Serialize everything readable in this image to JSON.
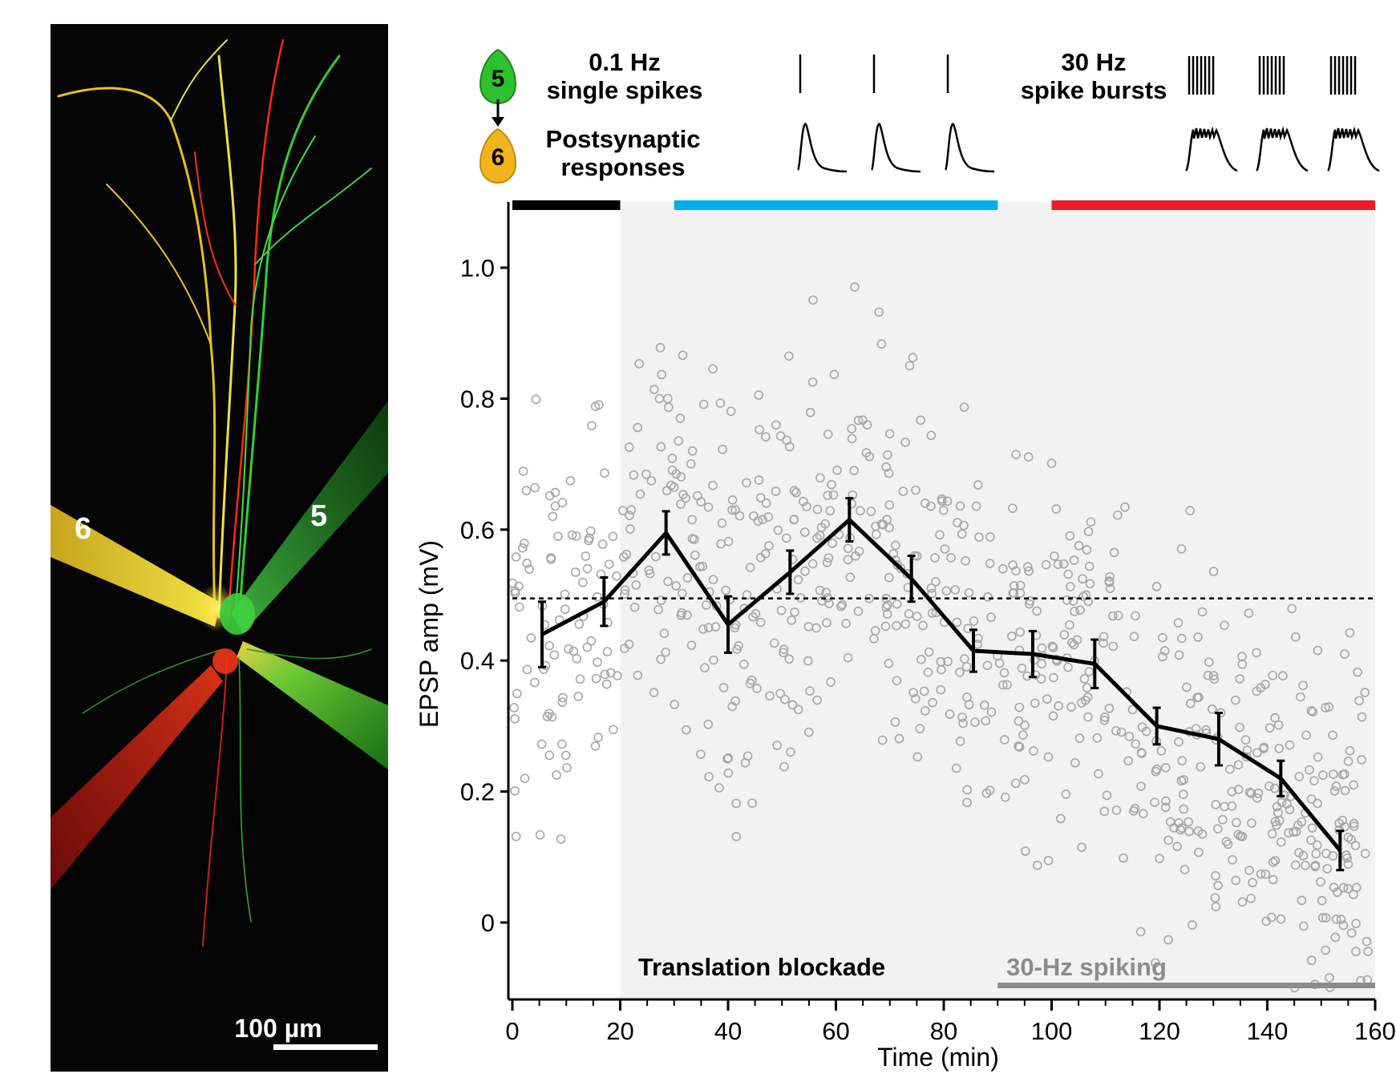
{
  "micrograph": {
    "electrode_label_left": "6",
    "electrode_label_right": "5",
    "scale_bar_label": "100 µm"
  },
  "legend": {
    "pre_cell_label": "5",
    "post_cell_label": "6",
    "single_spikes_line1": "0.1 Hz",
    "single_spikes_line2": "single spikes",
    "responses_line1": "Postsynaptic",
    "responses_line2": "responses",
    "bursts_line1": "30 Hz",
    "bursts_line2": "spike bursts"
  },
  "colors": {
    "baseline_bar": "#000000",
    "single_spike_bar": "#00aeef",
    "burst_bar": "#ee1c25",
    "shade": "#f2f2f2",
    "scatter": "#a6a6a6",
    "pre_cell": "#3ad13a",
    "post_cell": "#f2b41e"
  },
  "annotations": {
    "translation_blockade": "Translation blockade",
    "spiking_30hz": "30-Hz spiking"
  },
  "chart_data": {
    "type": "line",
    "xlabel": "Time (min)",
    "ylabel": "EPSP amp (mV)",
    "xlim": [
      0,
      160
    ],
    "ylim": [
      -0.12,
      1.1
    ],
    "xticks": [
      0,
      20,
      40,
      60,
      80,
      100,
      120,
      140,
      160
    ],
    "yticks": [
      0,
      0.2,
      0.4,
      0.6,
      0.8,
      1.0
    ],
    "ytick_labels": [
      "0",
      "0.2",
      "0.4",
      "0.6",
      "0.8",
      "1.0"
    ],
    "baseline_mean": 0.495,
    "protocol_periods": [
      {
        "start": 0,
        "end": 20,
        "color": "#000000"
      },
      {
        "start": 30,
        "end": 90,
        "color": "#00aeef"
      },
      {
        "start": 100,
        "end": 160,
        "color": "#ee1c25"
      }
    ],
    "translation_blockade_period": [
      20,
      160
    ],
    "spiking_30hz_period": [
      90,
      160
    ],
    "mean_series": {
      "x": [
        5.5,
        17,
        28.5,
        40,
        51.5,
        62.5,
        74,
        85.5,
        96.5,
        108,
        119.5,
        131,
        142.5,
        153.5
      ],
      "y": [
        0.44,
        0.49,
        0.595,
        0.455,
        0.535,
        0.615,
        0.525,
        0.415,
        0.41,
        0.395,
        0.3,
        0.28,
        0.22,
        0.11
      ],
      "err": [
        0.05,
        0.037,
        0.033,
        0.043,
        0.033,
        0.033,
        0.035,
        0.032,
        0.035,
        0.037,
        0.028,
        0.04,
        0.027,
        0.03
      ]
    },
    "scatter_note": "individual trial amplitudes (grey open circles)"
  }
}
